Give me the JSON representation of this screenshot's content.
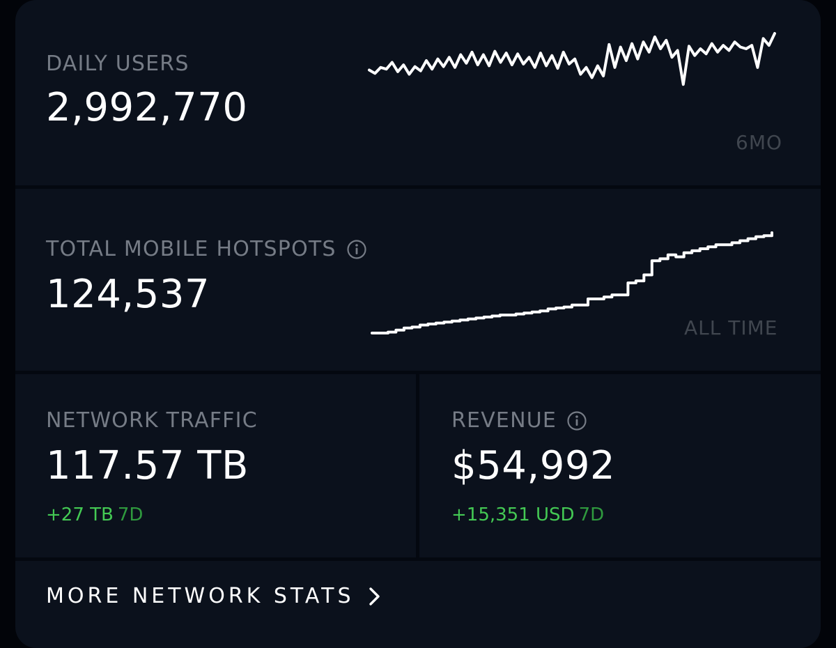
{
  "daily_users": {
    "label": "DAILY USERS",
    "value": "2,992,770",
    "period": "6MO",
    "icon": "sparkline-chart-icon",
    "trend": [
      0.57,
      0.53,
      0.6,
      0.58,
      0.66,
      0.55,
      0.63,
      0.52,
      0.61,
      0.56,
      0.68,
      0.58,
      0.7,
      0.61,
      0.72,
      0.6,
      0.75,
      0.65,
      0.78,
      0.63,
      0.75,
      0.62,
      0.79,
      0.66,
      0.77,
      0.63,
      0.76,
      0.64,
      0.72,
      0.6,
      0.77,
      0.62,
      0.74,
      0.59,
      0.78,
      0.64,
      0.7,
      0.52,
      0.6,
      0.48,
      0.62,
      0.5,
      0.87,
      0.6,
      0.84,
      0.68,
      0.88,
      0.7,
      0.9,
      0.78,
      0.96,
      0.82,
      0.92,
      0.72,
      0.8,
      0.4,
      0.85,
      0.74,
      0.82,
      0.76,
      0.88,
      0.78,
      0.86,
      0.8,
      0.9,
      0.84,
      0.82,
      0.86,
      0.6,
      0.94,
      0.86,
      1.0
    ]
  },
  "hotspots": {
    "label": "TOTAL MOBILE HOTSPOTS",
    "value": "124,537",
    "period": "ALL TIME",
    "info_icon": "info-icon",
    "trend": [
      0.0,
      0.0,
      0.01,
      0.03,
      0.05,
      0.06,
      0.08,
      0.09,
      0.1,
      0.11,
      0.12,
      0.13,
      0.14,
      0.15,
      0.16,
      0.17,
      0.18,
      0.18,
      0.19,
      0.2,
      0.21,
      0.22,
      0.24,
      0.25,
      0.26,
      0.28,
      0.28,
      0.34,
      0.34,
      0.36,
      0.38,
      0.38,
      0.5,
      0.52,
      0.58,
      0.72,
      0.74,
      0.78,
      0.76,
      0.8,
      0.82,
      0.84,
      0.86,
      0.88,
      0.88,
      0.9,
      0.92,
      0.94,
      0.96,
      0.97,
      1.0
    ]
  },
  "traffic": {
    "label": "NETWORK TRAFFIC",
    "value": "117.57 TB",
    "change": "+27 TB",
    "change_period": "7D"
  },
  "revenue": {
    "label": "REVENUE",
    "value": "$54,992",
    "info_icon": "info-icon",
    "change": "+15,351 USD",
    "change_period": "7D"
  },
  "more": {
    "label": "MORE NETWORK STATS",
    "icon": "chevron-right-icon"
  },
  "colors": {
    "card": "#0b111c",
    "positive": "#44c954",
    "muted": "#767c86"
  }
}
